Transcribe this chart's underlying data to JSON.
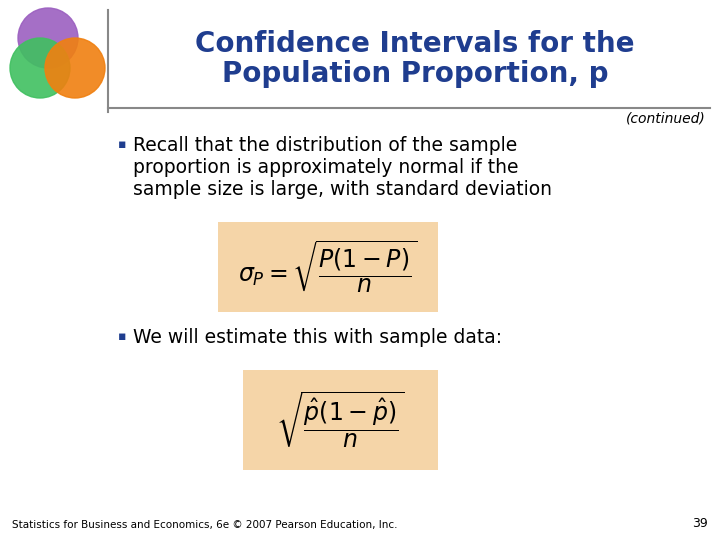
{
  "title_line1": "Confidence Intervals for the",
  "title_line2": "Population Proportion, p",
  "continued_text": "(continued)",
  "bullet1_line1": "Recall that the distribution of the sample",
  "bullet1_line2": "proportion is approximately normal if the",
  "bullet1_line3": "sample size is large, with standard deviation",
  "bullet2": "We will estimate this with sample data:",
  "footer": "Statistics for Business and Economics, 6e © 2007 Pearson Education, Inc.",
  "page_number": "39",
  "title_color": "#1F3D8F",
  "background_color": "#FFFFFF",
  "formula_box_color": "#F5D5A8",
  "text_color": "#000000",
  "footer_color": "#000000",
  "separator_color": "#888888",
  "bullet_color": "#1F3D8F",
  "circle_purple": "#9B5FC0",
  "circle_green": "#40C060",
  "circle_orange": "#F08010",
  "circle_yellow": "#F0C000"
}
